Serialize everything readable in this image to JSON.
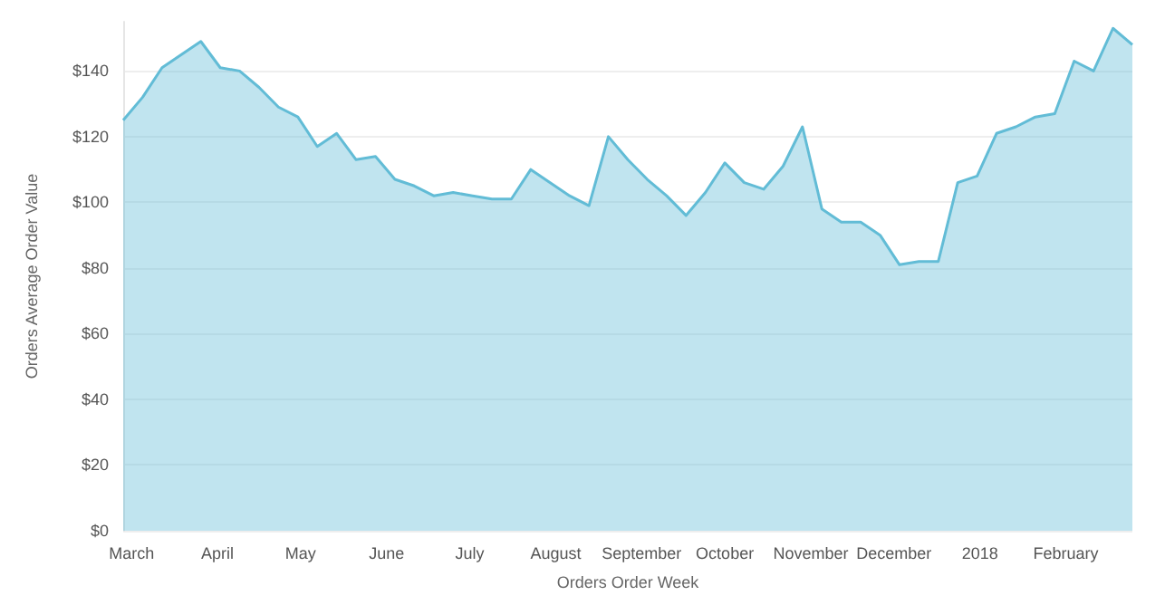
{
  "chart_data": {
    "type": "area",
    "xlabel": "Orders Order Week",
    "ylabel": "Orders Average Order Value",
    "x": [
      "2017-02-26",
      "2017-03-05",
      "2017-03-12",
      "2017-03-19",
      "2017-03-26",
      "2017-04-02",
      "2017-04-09",
      "2017-04-16",
      "2017-04-23",
      "2017-04-30",
      "2017-05-07",
      "2017-05-14",
      "2017-05-21",
      "2017-05-28",
      "2017-06-04",
      "2017-06-11",
      "2017-06-18",
      "2017-06-25",
      "2017-07-02",
      "2017-07-09",
      "2017-07-16",
      "2017-07-23",
      "2017-07-30",
      "2017-08-06",
      "2017-08-13",
      "2017-08-20",
      "2017-08-27",
      "2017-09-03",
      "2017-09-10",
      "2017-09-17",
      "2017-09-24",
      "2017-10-01",
      "2017-10-08",
      "2017-10-15",
      "2017-10-22",
      "2017-10-29",
      "2017-11-05",
      "2017-11-12",
      "2017-11-19",
      "2017-11-26",
      "2017-12-03",
      "2017-12-10",
      "2017-12-17",
      "2017-12-24",
      "2017-12-31",
      "2018-01-07",
      "2018-01-14",
      "2018-01-21",
      "2018-01-28",
      "2018-02-04",
      "2018-02-11",
      "2018-02-18",
      "2018-02-25"
    ],
    "series": [
      {
        "color": "#62bcd6",
        "values": [
          125,
          132,
          141,
          145,
          149,
          141,
          140,
          135,
          129,
          126,
          117,
          121,
          113,
          114,
          107,
          105,
          102,
          103,
          102,
          101,
          101,
          110,
          106,
          102,
          99,
          120,
          113,
          107,
          102,
          96,
          103,
          112,
          106,
          104,
          111,
          123,
          98,
          94,
          94,
          90,
          81,
          82,
          82,
          106,
          108,
          121,
          123,
          126,
          127,
          143,
          140,
          153,
          148
        ]
      }
    ],
    "xlim": [
      "2017-02-26",
      "2018-02-25"
    ],
    "xticks": [
      {
        "value": "2017-03-01",
        "label": "March"
      },
      {
        "value": "2017-04-01",
        "label": "April"
      },
      {
        "value": "2017-05-01",
        "label": "May"
      },
      {
        "value": "2017-06-01",
        "label": "June"
      },
      {
        "value": "2017-07-01",
        "label": "July"
      },
      {
        "value": "2017-08-01",
        "label": "August"
      },
      {
        "value": "2017-09-01",
        "label": "September"
      },
      {
        "value": "2017-10-01",
        "label": "October"
      },
      {
        "value": "2017-11-01",
        "label": "November"
      },
      {
        "value": "2017-12-01",
        "label": "December"
      },
      {
        "value": "2018-01-01",
        "label": "2018"
      },
      {
        "value": "2018-02-01",
        "label": "February"
      }
    ],
    "ylim": [
      0,
      155
    ],
    "yticks": [
      {
        "value": 0,
        "label": "$0"
      },
      {
        "value": 20,
        "label": "$20"
      },
      {
        "value": 40,
        "label": "$40"
      },
      {
        "value": 60,
        "label": "$60"
      },
      {
        "value": 80,
        "label": "$80"
      },
      {
        "value": 100,
        "label": "$100"
      },
      {
        "value": 120,
        "label": "$120"
      },
      {
        "value": 140,
        "label": "$140"
      }
    ],
    "grid": "y",
    "marker": "none",
    "line_style": "solid"
  }
}
